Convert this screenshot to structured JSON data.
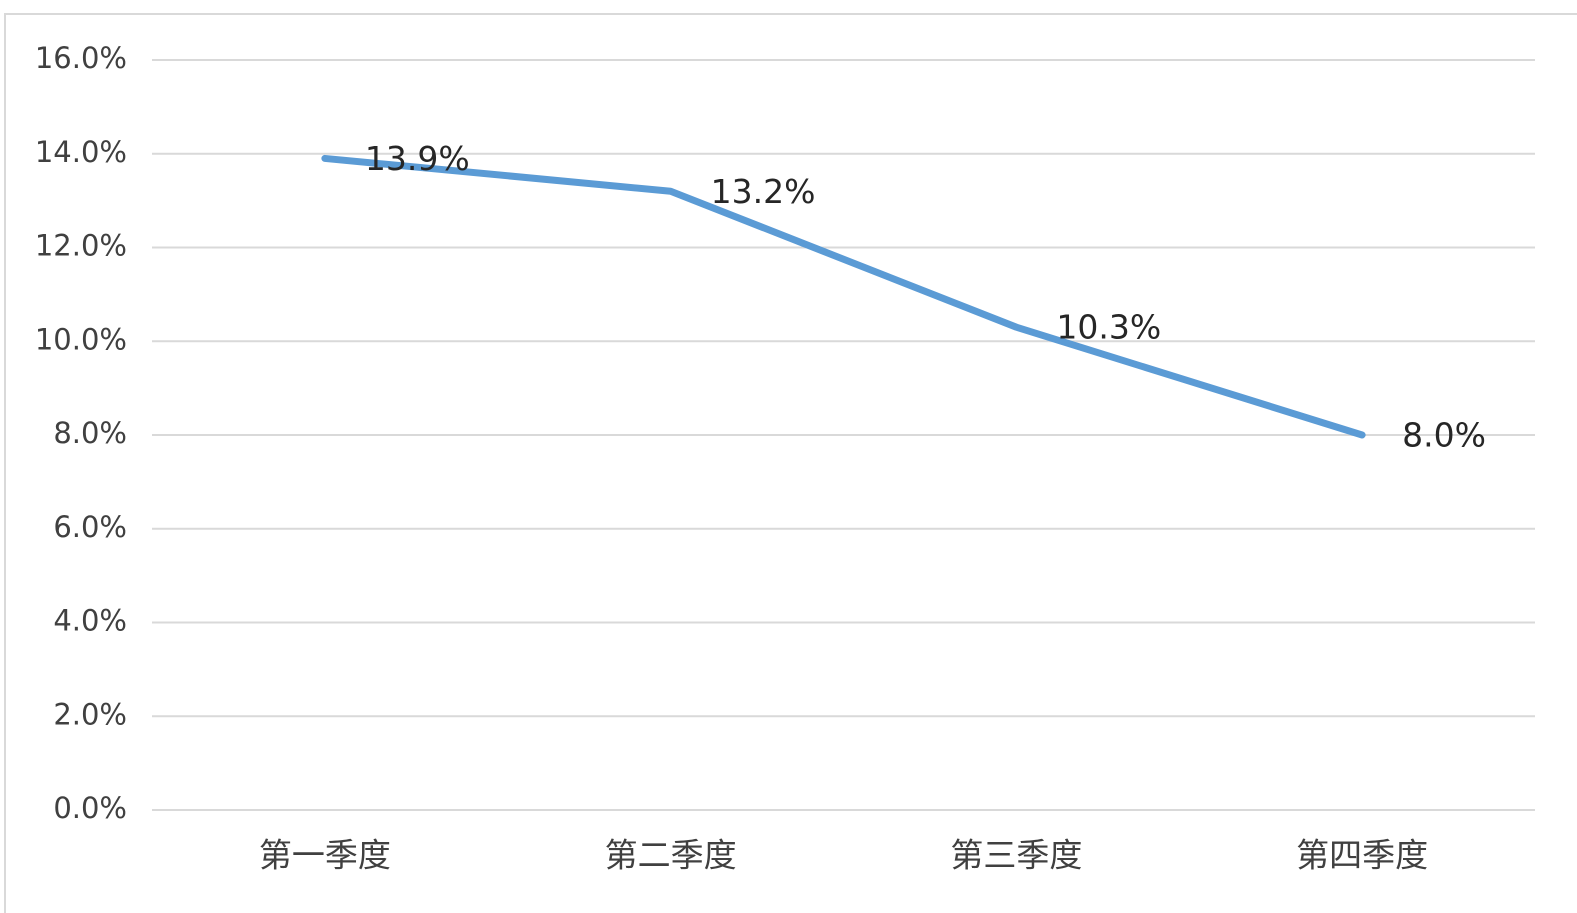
{
  "chart_data": {
    "type": "line",
    "categories": [
      "第一季度",
      "第二季度",
      "第三季度",
      "第四季度"
    ],
    "series": [
      {
        "color": "#5b9bd5",
        "values": [
          13.9,
          13.2,
          10.3,
          8.0
        ],
        "value_labels": [
          "13.9%",
          "13.2%",
          "10.3%",
          "8.0%"
        ]
      }
    ],
    "ylim": [
      0,
      16
    ],
    "yticks": [
      {
        "value": 0,
        "label": "0.0%"
      },
      {
        "value": 2,
        "label": "2.0%"
      },
      {
        "value": 4,
        "label": "4.0%"
      },
      {
        "value": 6,
        "label": "6.0%"
      },
      {
        "value": 8,
        "label": "8.0%"
      },
      {
        "value": 10,
        "label": "10.0%"
      },
      {
        "value": 12,
        "label": "12.0%"
      },
      {
        "value": 14,
        "label": "14.0%"
      },
      {
        "value": 16,
        "label": "16.0%"
      }
    ],
    "grid": true
  }
}
